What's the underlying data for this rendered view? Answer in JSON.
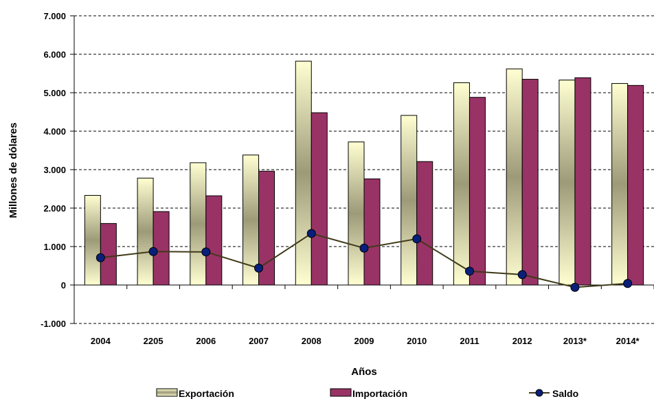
{
  "chart_data": {
    "type": "bar",
    "xlabel": "Años",
    "ylabel": "Millones de dólares",
    "ylim": [
      -1000,
      7000
    ],
    "yticks": [
      -1000,
      0,
      1000,
      2000,
      3000,
      4000,
      5000,
      6000,
      7000
    ],
    "ytick_labels": [
      "-1.000",
      "0",
      "1.000",
      "2.000",
      "3.000",
      "4.000",
      "5.000",
      "6.000",
      "7.000"
    ],
    "grid": "horizontal-dashed",
    "legend_position": "bottom",
    "categories": [
      "2004",
      "2205",
      "2006",
      "2007",
      "2008",
      "2009",
      "2010",
      "2011",
      "2012",
      "2013*",
      "2014*"
    ],
    "series": [
      {
        "name": "Exportación",
        "kind": "bar",
        "color": "#ffffcc",
        "values": [
          2330,
          2780,
          3180,
          3380,
          5820,
          3720,
          4410,
          5260,
          5620,
          5330,
          5240
        ]
      },
      {
        "name": "Importación",
        "kind": "bar",
        "color": "#993366",
        "values": [
          1600,
          1910,
          2320,
          2960,
          4480,
          2760,
          3210,
          4880,
          5350,
          5390,
          5190
        ]
      },
      {
        "name": "Saldo",
        "kind": "line",
        "color": "#3f3a18",
        "marker_color": "#0a1f7a",
        "values": [
          710,
          870,
          860,
          440,
          1340,
          960,
          1200,
          360,
          270,
          -60,
          40
        ]
      }
    ]
  }
}
